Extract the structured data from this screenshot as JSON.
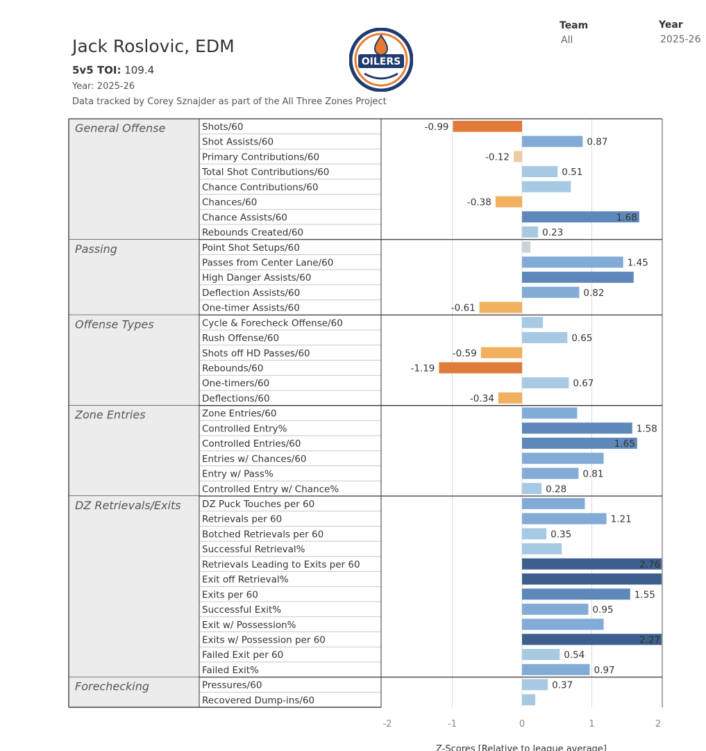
{
  "header": {
    "player": "Jack Roslovic, EDM",
    "toi_label": "5v5 TOI:",
    "toi_value": "109.4",
    "year_line": "Year: 2025-26",
    "credit": "Data tracked by Corey Sznajder as part of the All Three Zones Project",
    "logo_text": "OILERS"
  },
  "filters": {
    "team_label": "Team",
    "team_value": "All",
    "year_label": "Year",
    "year_value": "2025-26"
  },
  "colors": {
    "neg_strong": "#e07b39",
    "neg_mid": "#f0b060",
    "neg_weak": "#eccda1",
    "neutral": "#c9d2d8",
    "pos_light": "#a7c9e3",
    "pos_mid": "#82abd6",
    "pos_strong": "#5f88ba",
    "pos_dark": "#3d5f8e",
    "logo_blue": "#1f3b6f",
    "logo_orange": "#e87a2c"
  },
  "chart_data": {
    "type": "bar",
    "orientation": "horizontal",
    "xlabel": "Z-Scores [Relative to league average]",
    "xlim": [
      -2,
      2
    ],
    "ticks": [
      -2,
      -1,
      0,
      1,
      2
    ],
    "gridlines": [
      -1,
      0,
      1
    ],
    "groups": [
      {
        "name": "General Offense",
        "metrics": [
          {
            "label": "Shots/60",
            "value": -0.99,
            "shown": "-0.99"
          },
          {
            "label": "Shot Assists/60",
            "value": 0.87,
            "shown": "0.87"
          },
          {
            "label": "Primary Contributions/60",
            "value": -0.12,
            "shown": "-0.12"
          },
          {
            "label": "Total Shot Contributions/60",
            "value": 0.51,
            "shown": "0.51"
          },
          {
            "label": "Chance Contributions/60",
            "value": 0.7,
            "shown": ""
          },
          {
            "label": "Chances/60",
            "value": -0.38,
            "shown": "-0.38"
          },
          {
            "label": "Chance Assists/60",
            "value": 1.68,
            "shown": "1.68"
          },
          {
            "label": "Rebounds Created/60",
            "value": 0.23,
            "shown": "0.23"
          }
        ]
      },
      {
        "name": "Passing",
        "metrics": [
          {
            "label": "Point Shot Setups/60",
            "value": 0.12,
            "shown": ""
          },
          {
            "label": "Passes from Center Lane/60",
            "value": 1.45,
            "shown": "1.45"
          },
          {
            "label": "High Danger Assists/60",
            "value": 1.6,
            "shown": ""
          },
          {
            "label": "Deflection Assists/60",
            "value": 0.82,
            "shown": "0.82"
          },
          {
            "label": "One-timer Assists/60",
            "value": -0.61,
            "shown": "-0.61"
          }
        ]
      },
      {
        "name": "Offense Types",
        "metrics": [
          {
            "label": "Cycle & Forecheck Offense/60",
            "value": 0.3,
            "shown": ""
          },
          {
            "label": "Rush Offense/60",
            "value": 0.65,
            "shown": "0.65"
          },
          {
            "label": "Shots off HD Passes/60",
            "value": -0.59,
            "shown": "-0.59"
          },
          {
            "label": "Rebounds/60",
            "value": -1.19,
            "shown": "-1.19"
          },
          {
            "label": "One-timers/60",
            "value": 0.67,
            "shown": "0.67"
          },
          {
            "label": "Deflections/60",
            "value": -0.34,
            "shown": "-0.34"
          }
        ]
      },
      {
        "name": "Zone Entries",
        "metrics": [
          {
            "label": "Zone Entries/60",
            "value": 0.79,
            "shown": ""
          },
          {
            "label": "Controlled Entry%",
            "value": 1.58,
            "shown": "1.58"
          },
          {
            "label": "Controlled Entries/60",
            "value": 1.65,
            "shown": "1.65"
          },
          {
            "label": "Entries w/ Chances/60",
            "value": 1.17,
            "shown": ""
          },
          {
            "label": "Entry w/ Pass%",
            "value": 0.81,
            "shown": "0.81"
          },
          {
            "label": "Controlled Entry w/ Chance%",
            "value": 0.28,
            "shown": "0.28"
          }
        ]
      },
      {
        "name": "DZ Retrievals/Exits",
        "metrics": [
          {
            "label": "DZ Puck Touches per 60",
            "value": 0.9,
            "shown": ""
          },
          {
            "label": "Retrievals per 60",
            "value": 1.21,
            "shown": "1.21"
          },
          {
            "label": "Botched Retrievals per 60",
            "value": 0.35,
            "shown": "0.35"
          },
          {
            "label": "Successful Retrieval%",
            "value": 0.57,
            "shown": ""
          },
          {
            "label": "Retrievals Leading to Exits per 60",
            "value": 2.76,
            "shown": "2.76"
          },
          {
            "label": "Exit off Retrieval%",
            "value": 2.2,
            "shown": ""
          },
          {
            "label": "Exits per 60",
            "value": 1.55,
            "shown": "1.55"
          },
          {
            "label": "Successful Exit%",
            "value": 0.95,
            "shown": "0.95"
          },
          {
            "label": "Exit w/ Possession%",
            "value": 1.17,
            "shown": ""
          },
          {
            "label": "Exits w/ Possession per 60",
            "value": 2.27,
            "shown": "2.27"
          },
          {
            "label": "Failed Exit per 60",
            "value": 0.54,
            "shown": "0.54"
          },
          {
            "label": "Failed Exit%",
            "value": 0.97,
            "shown": "0.97"
          }
        ]
      },
      {
        "name": "Forechecking",
        "metrics": [
          {
            "label": "Pressures/60",
            "value": 0.37,
            "shown": "0.37"
          },
          {
            "label": "Recovered Dump-ins/60",
            "value": 0.19,
            "shown": ""
          }
        ]
      }
    ]
  }
}
